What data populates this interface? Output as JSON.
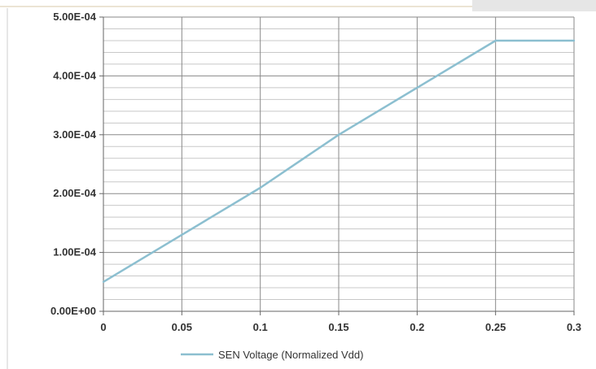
{
  "chart_data": {
    "type": "line",
    "x": [
      0,
      0.05,
      0.1,
      0.15,
      0.2,
      0.25,
      0.3
    ],
    "series": [
      {
        "name": "SEN Voltage (Normalized Vdd)",
        "values": [
          5e-05,
          0.00013,
          0.00021,
          0.0003,
          0.00038,
          0.00046,
          0.00046
        ],
        "color": "#8cbfd0"
      }
    ],
    "xlim": [
      0,
      0.3
    ],
    "ylim": [
      0,
      0.0005
    ],
    "x_ticks": [
      "0",
      "0.05",
      "0.1",
      "0.15",
      "0.2",
      "0.25",
      "0.3"
    ],
    "y_ticks": [
      "0.00E+00",
      "1.00E-04",
      "2.00E-04",
      "3.00E-04",
      "4.00E-04",
      "5.00E-04"
    ],
    "grid": true,
    "legend_position": "bottom",
    "colors": {
      "major_grid": "#8a8a8a",
      "minor_grid": "#c8c8c8",
      "axis": "#666666"
    }
  }
}
